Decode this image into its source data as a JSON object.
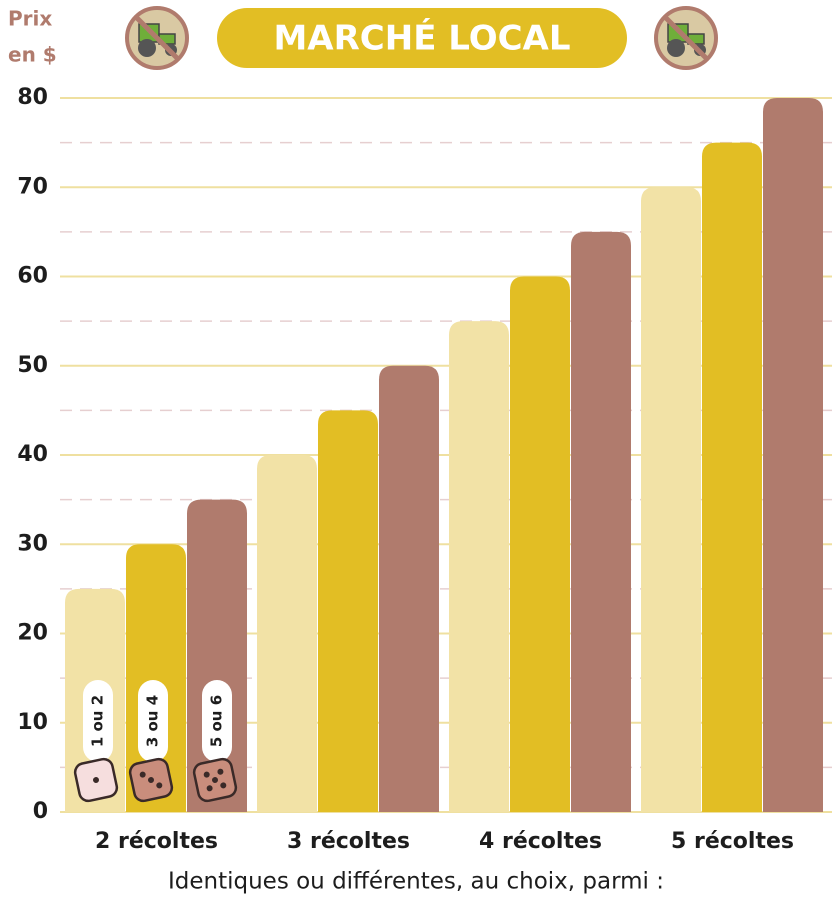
{
  "chart_data": {
    "type": "bar",
    "title": "MARCHÉ LOCAL",
    "ylabel_lines": [
      "Prix",
      "en $"
    ],
    "footer": "Identiques ou différentes, au choix, parmi :",
    "categories": [
      "2 récoltes",
      "3 récoltes",
      "4 récoltes",
      "5 récoltes"
    ],
    "series": [
      {
        "name": "1 ou 2",
        "color": "#f2e2a6",
        "values": [
          25,
          40,
          55,
          70
        ]
      },
      {
        "name": "3 ou 4",
        "color": "#e2be24",
        "values": [
          30,
          45,
          60,
          75
        ]
      },
      {
        "name": "5 ou 6",
        "color": "#b07b6d",
        "values": [
          35,
          50,
          65,
          80
        ]
      }
    ],
    "ylim": [
      0,
      80
    ],
    "yticks": [
      0,
      10,
      20,
      30,
      40,
      50,
      60,
      70,
      80
    ],
    "minor_yticks": [
      5,
      15,
      25,
      35,
      45,
      55,
      65,
      75
    ],
    "grid": true
  }
}
